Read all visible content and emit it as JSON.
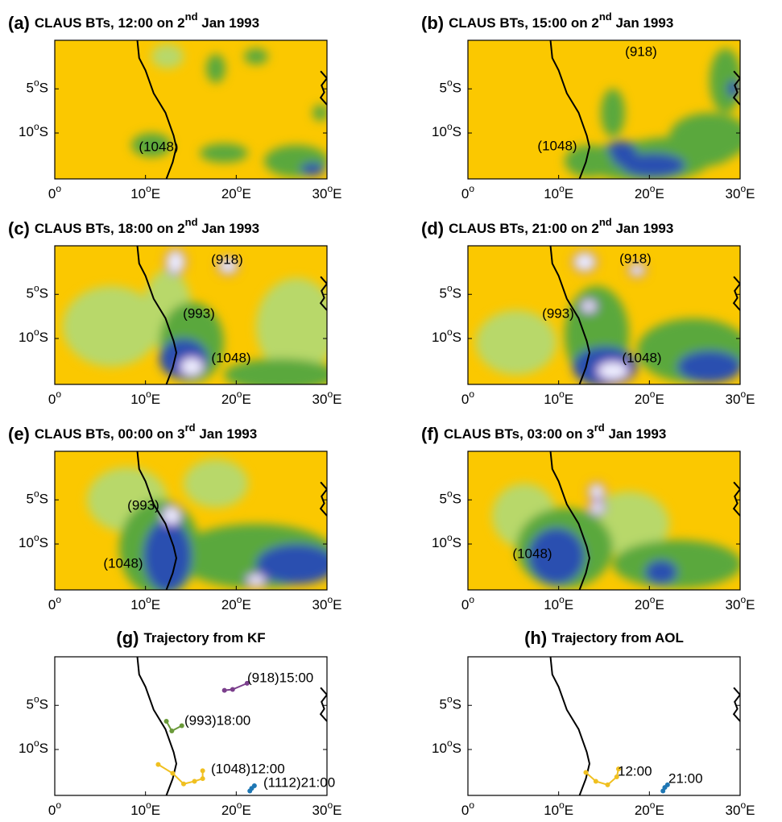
{
  "degree": "o",
  "xlim": [
    0,
    30
  ],
  "ylim": [
    -15.2,
    0.5
  ],
  "xticks": [
    {
      "value": 0,
      "label": "0"
    },
    {
      "value": 10,
      "label": "10",
      "suffix": "E"
    },
    {
      "value": 20,
      "label": "20",
      "suffix": "E"
    },
    {
      "value": 30,
      "label": "30",
      "suffix": "E"
    }
  ],
  "yticks": [
    {
      "value": -5,
      "label": "5",
      "suffix": "S"
    },
    {
      "value": -10,
      "label": "10",
      "suffix": "S"
    }
  ],
  "panels": [
    {
      "label": "(a)",
      "title": "CLAUS BTs, 12:00 on 2",
      "sup": "nd",
      "rest": " Jan 1993",
      "annotations": [
        "(1048)"
      ]
    },
    {
      "label": "(b)",
      "title": "CLAUS BTs, 15:00 on 2",
      "sup": "nd",
      "rest": " Jan 1993",
      "annotations": [
        "(918)",
        "(1048)"
      ]
    },
    {
      "label": "(c)",
      "title": "CLAUS BTs, 18:00 on 2",
      "sup": "nd",
      "rest": " Jan 1993",
      "annotations": [
        "(918)",
        "(993)",
        "(1048)"
      ]
    },
    {
      "label": "(d)",
      "title": "CLAUS BTs, 21:00 on 2",
      "sup": "nd",
      "rest": " Jan 1993",
      "annotations": [
        "(918)",
        "(993)",
        "(1048)"
      ]
    },
    {
      "label": "(e)",
      "title": "CLAUS BTs, 00:00 on 3",
      "sup": "rd",
      "rest": " Jan 1993",
      "annotations": [
        "(993)",
        "(1048)"
      ]
    },
    {
      "label": "(f)",
      "title": "CLAUS BTs, 03:00 on 3",
      "sup": "rd",
      "rest": " Jan 1993",
      "annotations": [
        "(1048)"
      ]
    }
  ],
  "trajectories": [
    {
      "label": "(g)",
      "title": "Trajectory from KF",
      "tracks": [
        {
          "name": "(918)15:00",
          "color": "#7b3f8c",
          "lon": [
            18.7,
            19.6,
            21.2
          ],
          "lat": [
            -3.3,
            -3.2,
            -2.5
          ]
        },
        {
          "name": "(993)18:00",
          "color": "#6a9a3a",
          "lon": [
            12.3,
            12.9,
            14.0
          ],
          "lat": [
            -6.8,
            -7.9,
            -7.3
          ]
        },
        {
          "name": "(1048)12:00",
          "color": "#f0c020",
          "lon": [
            11.4,
            13.0,
            14.2,
            15.4,
            16.3,
            16.3
          ],
          "lat": [
            -11.7,
            -12.7,
            -13.9,
            -13.6,
            -13.3,
            -12.4
          ]
        },
        {
          "name": "(1112)21:00",
          "color": "#1f77b4",
          "lon": [
            21.5,
            21.7,
            22.0
          ],
          "lat": [
            -14.7,
            -14.4,
            -14.1
          ]
        }
      ]
    },
    {
      "label": "(h)",
      "title": "Trajectory from AOL",
      "tracks": [
        {
          "name": "12:00",
          "color": "#f0c020",
          "lon": [
            13.0,
            14.1,
            15.4,
            16.4,
            16.6
          ],
          "lat": [
            -12.6,
            -13.6,
            -14.0,
            -13.1,
            -12.2
          ]
        },
        {
          "name": "21:00",
          "color": "#1f77b4",
          "lon": [
            21.5,
            21.7,
            22.0
          ],
          "lat": [
            -14.7,
            -14.3,
            -14.0
          ]
        }
      ]
    }
  ]
}
